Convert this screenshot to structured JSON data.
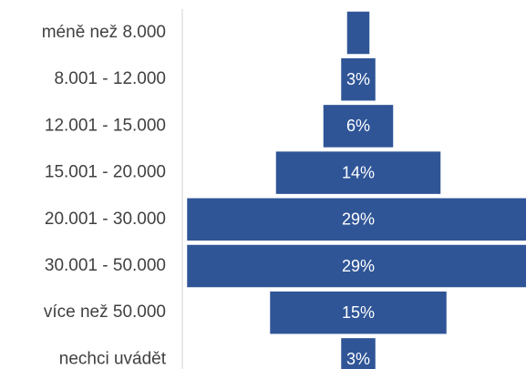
{
  "chart_data": {
    "type": "funnel",
    "categories": [
      "méně než 8.000",
      "8.001 - 12.000",
      "12.001 - 15.000",
      "15.001 - 20.000",
      "20.001 - 30.000",
      "30.001 - 50.000",
      "více než 50.000",
      "nechci uvádět"
    ],
    "values": [
      2,
      3,
      6,
      14,
      29,
      29,
      15,
      3
    ],
    "value_labels": [
      null,
      "3%",
      "6%",
      "14%",
      "29%",
      "29%",
      "15%",
      "3%"
    ],
    "color": "#2f5597"
  }
}
